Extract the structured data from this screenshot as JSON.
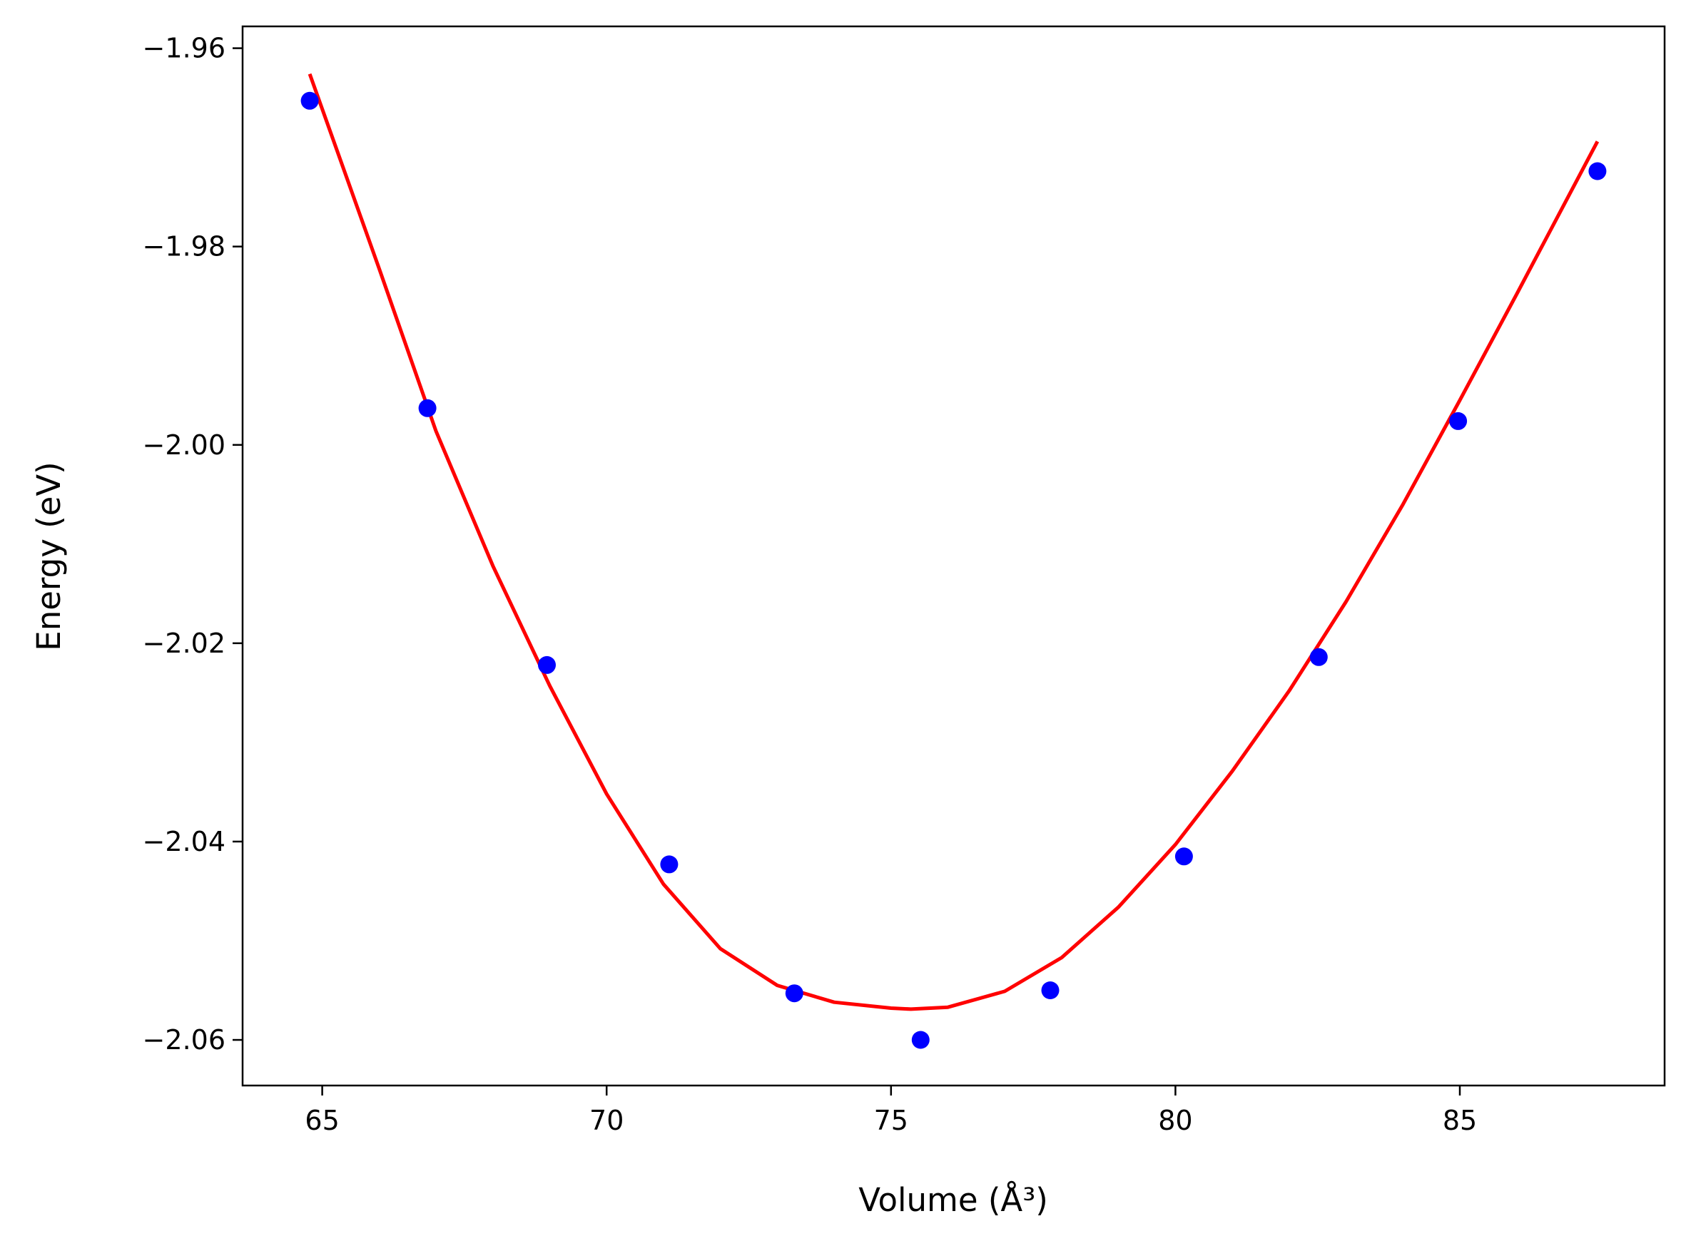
{
  "chart_data": {
    "type": "scatter",
    "title": "",
    "xlabel": "Volume (Å³)",
    "ylabel": "Energy (eV)",
    "xlim": [
      63.6,
      88.6
    ],
    "ylim": [
      -2.0646,
      -1.9578
    ],
    "xticks": [
      65,
      70,
      75,
      80,
      85
    ],
    "yticks": [
      -1.96,
      -1.98,
      -2.0,
      -2.02,
      -2.04,
      -2.06
    ],
    "xtick_labels": [
      "65",
      "70",
      "75",
      "80",
      "85"
    ],
    "ytick_labels": [
      "−1.96",
      "−1.98",
      "−2.00",
      "−2.02",
      "−2.04",
      "−2.06"
    ],
    "grid": false,
    "series": [
      {
        "kind": "points",
        "color": "#0000ff",
        "x": [
          64.78,
          66.85,
          68.95,
          71.1,
          73.3,
          75.52,
          77.8,
          80.15,
          82.52,
          84.97,
          87.42
        ],
        "y": [
          -1.9653,
          -1.9963,
          -2.0222,
          -2.0423,
          -2.0553,
          -2.06,
          -2.055,
          -2.0415,
          -2.0214,
          -1.9976,
          -1.9724
        ]
      },
      {
        "kind": "fit",
        "color": "#ff0000",
        "x": [
          64.78,
          66.0,
          67.0,
          68.0,
          69.0,
          70.0,
          71.0,
          72.0,
          73.0,
          74.0,
          75.0,
          75.35,
          76.0,
          77.0,
          78.0,
          79.0,
          80.0,
          81.0,
          82.0,
          83.0,
          84.0,
          85.0,
          86.0,
          87.42
        ],
        "y": [
          -1.9626,
          -1.9822,
          -1.9986,
          -2.0122,
          -2.0243,
          -2.0352,
          -2.0443,
          -2.0508,
          -2.0545,
          -2.0562,
          -2.0568,
          -2.0569,
          -2.0567,
          -2.0551,
          -2.0517,
          -2.0466,
          -2.0403,
          -2.0329,
          -2.0248,
          -2.0158,
          -2.006,
          -1.9955,
          -1.9848,
          -1.9694
        ]
      }
    ]
  }
}
